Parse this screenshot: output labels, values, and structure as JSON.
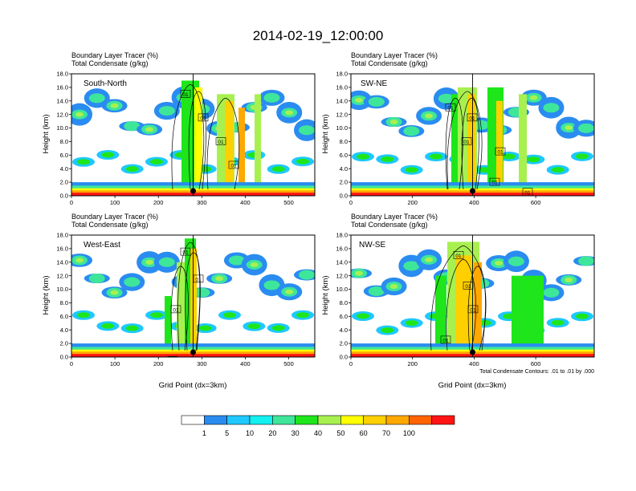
{
  "header": {
    "title": "2014-02-19_12:00:00"
  },
  "chart_data": [
    {
      "type": "heatmap",
      "title_lines": [
        "Boundary Layer Tracer   (%)",
        "Total Condensate   (g/kg)"
      ],
      "region": "South-North",
      "xlabel": "",
      "ylabel": "Height (km)",
      "xlim": [
        0,
        560
      ],
      "ylim": [
        0,
        18
      ],
      "xticks": [
        0,
        100,
        200,
        300,
        400,
        500
      ],
      "yticks": [
        "0.0",
        "2.0",
        "4.0",
        "6.0",
        "8.0",
        "10.0",
        "12.0",
        "14.0",
        "16.0",
        "18.0"
      ],
      "contour_labels": [
        "01",
        "01",
        "01",
        "01"
      ],
      "marker_x": 280
    },
    {
      "type": "heatmap",
      "title_lines": [
        "Boundary Layer Tracer   (%)",
        "Total Condensate   (g/kg)"
      ],
      "region": "SW-NE",
      "xlabel": "",
      "ylabel": "Height (km)",
      "xlim": [
        0,
        790
      ],
      "ylim": [
        0,
        18
      ],
      "xticks": [
        0,
        200,
        400,
        600
      ],
      "yticks": [
        "0.0",
        "2.0",
        "4.0",
        "6.0",
        "8.0",
        "10.0",
        "12.0",
        "14.0",
        "16.0",
        "18.0"
      ],
      "contour_labels": [
        "01",
        "01",
        "01",
        "01",
        "01",
        "01"
      ],
      "marker_x": 395
    },
    {
      "type": "heatmap",
      "title_lines": [
        "Boundary Layer Tracer   (%)",
        "Total Condensate   (g/kg)"
      ],
      "region": "West-East",
      "xlabel": "Grid Point (dx=3km)",
      "ylabel": "Height (km)",
      "xlim": [
        0,
        560
      ],
      "ylim": [
        0,
        18
      ],
      "xticks": [
        0,
        100,
        200,
        300,
        400,
        500
      ],
      "yticks": [
        "0.0",
        "2.0",
        "4.0",
        "6.0",
        "8.0",
        "10.0",
        "12.0",
        "14.0",
        "16.0",
        "18.0"
      ],
      "contour_labels": [
        "01",
        "01",
        "01",
        "01"
      ],
      "marker_x": 280
    },
    {
      "type": "heatmap",
      "title_lines": [
        "Boundary Layer Tracer   (%)",
        "Total Condensate   (g/kg)"
      ],
      "region": "NW-SE",
      "xlabel": "Grid Point (dx=3km)",
      "ylabel": "Height (km)",
      "xlim": [
        0,
        790
      ],
      "ylim": [
        0,
        18
      ],
      "xticks": [
        0,
        200,
        400,
        600
      ],
      "yticks": [
        "0.0",
        "2.0",
        "4.0",
        "6.0",
        "8.0",
        "10.0",
        "12.0",
        "14.0",
        "16.0",
        "18.0"
      ],
      "contour_labels": [
        "01",
        "01",
        "01",
        "01"
      ],
      "marker_x": 395,
      "note": "Total Condensate Contours: .01 to .01 by .000"
    }
  ],
  "colorbar": {
    "colors": [
      "#ffffff",
      "#2a8cf0",
      "#1fc8ff",
      "#12f0f0",
      "#3ee69a",
      "#1ee61a",
      "#a8f050",
      "#ffff00",
      "#ffd000",
      "#ffa800",
      "#ff6400",
      "#ff1414"
    ],
    "labels": [
      "1",
      "5",
      "10",
      "20",
      "30",
      "40",
      "50",
      "60",
      "70",
      "100"
    ]
  }
}
